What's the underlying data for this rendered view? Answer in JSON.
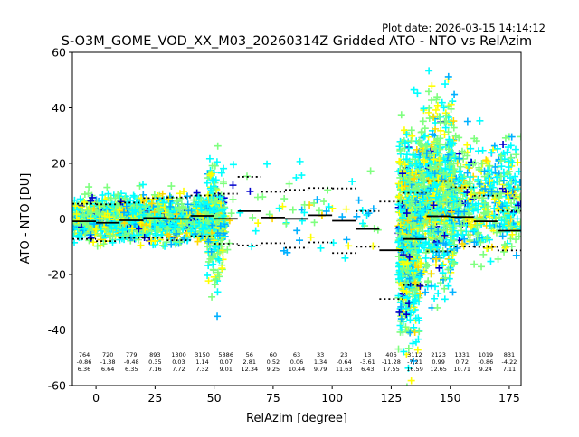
{
  "chart_data": {
    "type": "scatter",
    "plot_date": "Plot date: 2026-03-15 14:14:12",
    "title": "S-O3M_GOME_VOD_XX_M03_20260314Z Gridded ATO - NTO vs RelAzim",
    "xlabel": "RelAzim [degree]",
    "ylabel": "ATO - NTO [DU]",
    "xlim": [
      -10,
      180
    ],
    "ylim": [
      -60,
      60
    ],
    "xticks": [
      0,
      25,
      50,
      75,
      100,
      125,
      150,
      175
    ],
    "yticks": [
      -60,
      -40,
      -20,
      0,
      20,
      40,
      60
    ],
    "grid": false,
    "zero_line": 0,
    "point_colors": [
      "#00ffff",
      "#7fff7f",
      "#ffff00",
      "#00b0ff",
      "#0000cd",
      "#ffd700"
    ],
    "bins": [
      {
        "x": -5,
        "width": 10,
        "count": "764",
        "mean": "-0.86",
        "std": "6.36"
      },
      {
        "x": 5,
        "width": 10,
        "count": "720",
        "mean": "-1.38",
        "std": "6.64"
      },
      {
        "x": 15,
        "width": 10,
        "count": "779",
        "mean": "-0.48",
        "std": "6.35"
      },
      {
        "x": 25,
        "width": 10,
        "count": "893",
        "mean": "0.35",
        "std": "7.16"
      },
      {
        "x": 35,
        "width": 10,
        "count": "1300",
        "mean": "0.03",
        "std": "7.72"
      },
      {
        "x": 45,
        "width": 10,
        "count": "3150",
        "mean": "1.14",
        "std": "7.32"
      },
      {
        "x": 55,
        "width": 10,
        "count": "5886",
        "mean": "0.07",
        "std": "9.01"
      },
      {
        "x": 65,
        "width": 10,
        "count": "56",
        "mean": "2.81",
        "std": "12.34"
      },
      {
        "x": 75,
        "width": 10,
        "count": "60",
        "mean": "0.52",
        "std": "9.25"
      },
      {
        "x": 85,
        "width": 10,
        "count": "63",
        "mean": "0.06",
        "std": "10.44"
      },
      {
        "x": 95,
        "width": 10,
        "count": "33",
        "mean": "1.34",
        "std": "9.79"
      },
      {
        "x": 105,
        "width": 10,
        "count": "23",
        "mean": "-0.64",
        "std": "11.63"
      },
      {
        "x": 115,
        "width": 10,
        "count": "13",
        "mean": "-3.61",
        "std": "6.43"
      },
      {
        "x": 125,
        "width": 10,
        "count": "406",
        "mean": "-11.28",
        "std": "17.55"
      },
      {
        "x": 135,
        "width": 10,
        "count": "3112",
        "mean": "-7.21",
        "std": "16.59"
      },
      {
        "x": 145,
        "width": 10,
        "count": "2123",
        "mean": "0.99",
        "std": "12.65"
      },
      {
        "x": 155,
        "width": 10,
        "count": "1331",
        "mean": "0.72",
        "std": "10.71"
      },
      {
        "x": 165,
        "width": 10,
        "count": "1019",
        "mean": "-0.86",
        "std": "9.24"
      },
      {
        "x": 175,
        "width": 10,
        "count": "831",
        "mean": "-4.22",
        "std": "7.11"
      }
    ],
    "clusters": [
      {
        "x": [
          -10,
          55
        ],
        "y": [
          -20,
          17
        ],
        "xlo": -10,
        "xhi": 55
      },
      {
        "x": [
          47,
          54
        ],
        "y": [
          -40,
          37
        ]
      },
      {
        "x": [
          128,
          137
        ],
        "y": [
          -60,
          48
        ]
      },
      {
        "x": [
          137,
          152
        ],
        "y": [
          -40,
          58
        ]
      },
      {
        "x": [
          150,
          180
        ],
        "y": [
          -25,
          40
        ]
      },
      {
        "x": [
          55,
          120
        ],
        "y": [
          -25,
          33
        ]
      }
    ]
  }
}
